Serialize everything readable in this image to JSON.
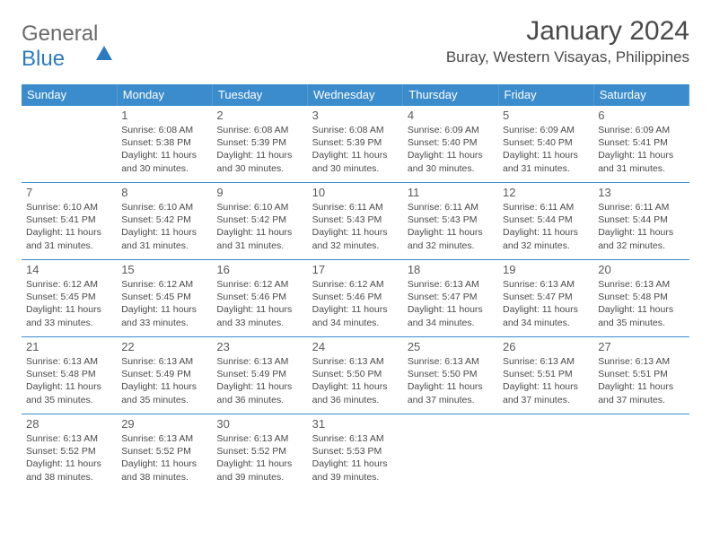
{
  "logo": {
    "text1": "General",
    "text2": "Blue"
  },
  "title": "January 2024",
  "location": "Buray, Western Visayas, Philippines",
  "colors": {
    "header_bg": "#3b8ccc",
    "header_fg": "#ffffff",
    "cell_border": "#3b8ccc",
    "text": "#4a4a4a",
    "logo_blue": "#2b7bbf",
    "background": "#ffffff"
  },
  "day_names": [
    "Sunday",
    "Monday",
    "Tuesday",
    "Wednesday",
    "Thursday",
    "Friday",
    "Saturday"
  ],
  "weeks": [
    [
      {
        "n": "",
        "sr": "",
        "ss": "",
        "dl": ""
      },
      {
        "n": "1",
        "sr": "Sunrise: 6:08 AM",
        "ss": "Sunset: 5:38 PM",
        "dl": "Daylight: 11 hours and 30 minutes."
      },
      {
        "n": "2",
        "sr": "Sunrise: 6:08 AM",
        "ss": "Sunset: 5:39 PM",
        "dl": "Daylight: 11 hours and 30 minutes."
      },
      {
        "n": "3",
        "sr": "Sunrise: 6:08 AM",
        "ss": "Sunset: 5:39 PM",
        "dl": "Daylight: 11 hours and 30 minutes."
      },
      {
        "n": "4",
        "sr": "Sunrise: 6:09 AM",
        "ss": "Sunset: 5:40 PM",
        "dl": "Daylight: 11 hours and 30 minutes."
      },
      {
        "n": "5",
        "sr": "Sunrise: 6:09 AM",
        "ss": "Sunset: 5:40 PM",
        "dl": "Daylight: 11 hours and 31 minutes."
      },
      {
        "n": "6",
        "sr": "Sunrise: 6:09 AM",
        "ss": "Sunset: 5:41 PM",
        "dl": "Daylight: 11 hours and 31 minutes."
      }
    ],
    [
      {
        "n": "7",
        "sr": "Sunrise: 6:10 AM",
        "ss": "Sunset: 5:41 PM",
        "dl": "Daylight: 11 hours and 31 minutes."
      },
      {
        "n": "8",
        "sr": "Sunrise: 6:10 AM",
        "ss": "Sunset: 5:42 PM",
        "dl": "Daylight: 11 hours and 31 minutes."
      },
      {
        "n": "9",
        "sr": "Sunrise: 6:10 AM",
        "ss": "Sunset: 5:42 PM",
        "dl": "Daylight: 11 hours and 31 minutes."
      },
      {
        "n": "10",
        "sr": "Sunrise: 6:11 AM",
        "ss": "Sunset: 5:43 PM",
        "dl": "Daylight: 11 hours and 32 minutes."
      },
      {
        "n": "11",
        "sr": "Sunrise: 6:11 AM",
        "ss": "Sunset: 5:43 PM",
        "dl": "Daylight: 11 hours and 32 minutes."
      },
      {
        "n": "12",
        "sr": "Sunrise: 6:11 AM",
        "ss": "Sunset: 5:44 PM",
        "dl": "Daylight: 11 hours and 32 minutes."
      },
      {
        "n": "13",
        "sr": "Sunrise: 6:11 AM",
        "ss": "Sunset: 5:44 PM",
        "dl": "Daylight: 11 hours and 32 minutes."
      }
    ],
    [
      {
        "n": "14",
        "sr": "Sunrise: 6:12 AM",
        "ss": "Sunset: 5:45 PM",
        "dl": "Daylight: 11 hours and 33 minutes."
      },
      {
        "n": "15",
        "sr": "Sunrise: 6:12 AM",
        "ss": "Sunset: 5:45 PM",
        "dl": "Daylight: 11 hours and 33 minutes."
      },
      {
        "n": "16",
        "sr": "Sunrise: 6:12 AM",
        "ss": "Sunset: 5:46 PM",
        "dl": "Daylight: 11 hours and 33 minutes."
      },
      {
        "n": "17",
        "sr": "Sunrise: 6:12 AM",
        "ss": "Sunset: 5:46 PM",
        "dl": "Daylight: 11 hours and 34 minutes."
      },
      {
        "n": "18",
        "sr": "Sunrise: 6:13 AM",
        "ss": "Sunset: 5:47 PM",
        "dl": "Daylight: 11 hours and 34 minutes."
      },
      {
        "n": "19",
        "sr": "Sunrise: 6:13 AM",
        "ss": "Sunset: 5:47 PM",
        "dl": "Daylight: 11 hours and 34 minutes."
      },
      {
        "n": "20",
        "sr": "Sunrise: 6:13 AM",
        "ss": "Sunset: 5:48 PM",
        "dl": "Daylight: 11 hours and 35 minutes."
      }
    ],
    [
      {
        "n": "21",
        "sr": "Sunrise: 6:13 AM",
        "ss": "Sunset: 5:48 PM",
        "dl": "Daylight: 11 hours and 35 minutes."
      },
      {
        "n": "22",
        "sr": "Sunrise: 6:13 AM",
        "ss": "Sunset: 5:49 PM",
        "dl": "Daylight: 11 hours and 35 minutes."
      },
      {
        "n": "23",
        "sr": "Sunrise: 6:13 AM",
        "ss": "Sunset: 5:49 PM",
        "dl": "Daylight: 11 hours and 36 minutes."
      },
      {
        "n": "24",
        "sr": "Sunrise: 6:13 AM",
        "ss": "Sunset: 5:50 PM",
        "dl": "Daylight: 11 hours and 36 minutes."
      },
      {
        "n": "25",
        "sr": "Sunrise: 6:13 AM",
        "ss": "Sunset: 5:50 PM",
        "dl": "Daylight: 11 hours and 37 minutes."
      },
      {
        "n": "26",
        "sr": "Sunrise: 6:13 AM",
        "ss": "Sunset: 5:51 PM",
        "dl": "Daylight: 11 hours and 37 minutes."
      },
      {
        "n": "27",
        "sr": "Sunrise: 6:13 AM",
        "ss": "Sunset: 5:51 PM",
        "dl": "Daylight: 11 hours and 37 minutes."
      }
    ],
    [
      {
        "n": "28",
        "sr": "Sunrise: 6:13 AM",
        "ss": "Sunset: 5:52 PM",
        "dl": "Daylight: 11 hours and 38 minutes."
      },
      {
        "n": "29",
        "sr": "Sunrise: 6:13 AM",
        "ss": "Sunset: 5:52 PM",
        "dl": "Daylight: 11 hours and 38 minutes."
      },
      {
        "n": "30",
        "sr": "Sunrise: 6:13 AM",
        "ss": "Sunset: 5:52 PM",
        "dl": "Daylight: 11 hours and 39 minutes."
      },
      {
        "n": "31",
        "sr": "Sunrise: 6:13 AM",
        "ss": "Sunset: 5:53 PM",
        "dl": "Daylight: 11 hours and 39 minutes."
      },
      {
        "n": "",
        "sr": "",
        "ss": "",
        "dl": ""
      },
      {
        "n": "",
        "sr": "",
        "ss": "",
        "dl": ""
      },
      {
        "n": "",
        "sr": "",
        "ss": "",
        "dl": ""
      }
    ]
  ]
}
